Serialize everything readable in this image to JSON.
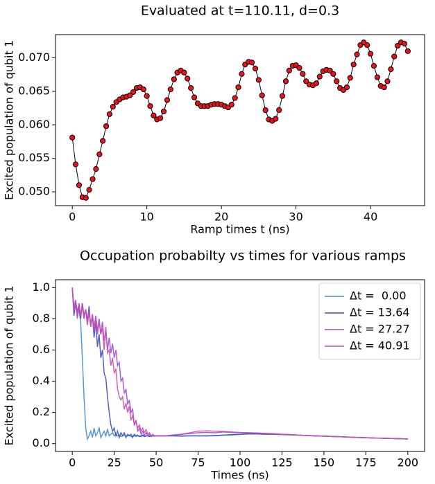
{
  "chart_data": [
    {
      "type": "line",
      "title": "Evaluated at t=110.11, d=0.3",
      "xlabel": "Ramp times t (ns)",
      "ylabel": "Excited population of qubit 1",
      "color": "#000000",
      "marker_color": "#e8141a",
      "x": [
        0,
        0.45,
        0.91,
        1.36,
        1.82,
        2.27,
        2.73,
        3.18,
        3.64,
        4.09,
        4.55,
        5.0,
        5.45,
        5.91,
        6.36,
        6.82,
        7.27,
        7.73,
        8.18,
        8.64,
        9.09,
        9.55,
        10.0,
        10.45,
        10.91,
        11.36,
        11.82,
        12.27,
        12.73,
        13.18,
        13.64,
        14.09,
        14.55,
        15.0,
        15.45,
        15.91,
        16.36,
        16.82,
        17.27,
        17.73,
        18.18,
        18.64,
        19.09,
        19.55,
        20.0,
        20.45,
        20.91,
        21.36,
        21.82,
        22.27,
        22.73,
        23.18,
        23.64,
        24.09,
        24.55,
        25.0,
        25.45,
        25.91,
        26.36,
        26.82,
        27.27,
        27.73,
        28.18,
        28.64,
        29.09,
        29.55,
        30.0,
        30.45,
        30.91,
        31.36,
        31.82,
        32.27,
        32.73,
        33.18,
        33.64,
        34.09,
        34.55,
        35.0,
        35.45,
        35.91,
        36.36,
        36.82,
        37.27,
        37.73,
        38.18,
        38.64,
        39.09,
        39.55,
        40.0,
        40.45,
        40.91,
        41.36,
        41.82,
        42.27,
        42.73,
        43.18,
        43.64,
        44.09,
        44.55,
        45.0
      ],
      "values": [
        0.0581,
        0.0541,
        0.051,
        0.0492,
        0.0491,
        0.0503,
        0.0519,
        0.0534,
        0.0556,
        0.0576,
        0.0598,
        0.0616,
        0.0627,
        0.0634,
        0.0638,
        0.0641,
        0.0642,
        0.0644,
        0.0649,
        0.0655,
        0.0656,
        0.0653,
        0.0643,
        0.0628,
        0.0614,
        0.0608,
        0.061,
        0.062,
        0.0637,
        0.0653,
        0.0668,
        0.0678,
        0.0681,
        0.0678,
        0.0669,
        0.0655,
        0.0641,
        0.0632,
        0.0628,
        0.0628,
        0.0628,
        0.063,
        0.0631,
        0.0631,
        0.063,
        0.0628,
        0.0626,
        0.063,
        0.064,
        0.0656,
        0.0676,
        0.069,
        0.0694,
        0.0693,
        0.0684,
        0.0667,
        0.0644,
        0.0622,
        0.0608,
        0.0606,
        0.0609,
        0.0622,
        0.0643,
        0.0665,
        0.0681,
        0.0688,
        0.0689,
        0.0685,
        0.0676,
        0.0665,
        0.066,
        0.0659,
        0.0662,
        0.0672,
        0.068,
        0.0682,
        0.0681,
        0.0676,
        0.0665,
        0.0655,
        0.0652,
        0.0656,
        0.067,
        0.069,
        0.0705,
        0.0719,
        0.0723,
        0.0719,
        0.0706,
        0.0688,
        0.0671,
        0.0658,
        0.0656,
        0.0665,
        0.0683,
        0.0702,
        0.0718,
        0.0723,
        0.0721,
        0.071
      ],
      "xlim": [
        -2.25,
        47.25
      ],
      "xticks": [
        0,
        10,
        20,
        30,
        40
      ],
      "ylim": [
        0.04794,
        0.07346
      ],
      "yticks": [
        {
          "value": 0.05,
          "label": "0.050"
        },
        {
          "value": 0.055,
          "label": "0.055"
        },
        {
          "value": 0.06,
          "label": "0.060"
        },
        {
          "value": 0.065,
          "label": "0.065"
        },
        {
          "value": 0.07,
          "label": "0.070"
        }
      ]
    },
    {
      "type": "line",
      "title": "Occupation probabilty vs times for various ramps",
      "xlabel": "Times (ns)",
      "ylabel": "Excited population of qubit 1",
      "legend": "upper right",
      "x": [
        0,
        1,
        2,
        3,
        4,
        5,
        6,
        7,
        8,
        9,
        10,
        11,
        12,
        13,
        14,
        15,
        16,
        17,
        18,
        19,
        20,
        21,
        22,
        23,
        24,
        25,
        26,
        27,
        28,
        29,
        30,
        31,
        32,
        33,
        34,
        35,
        36,
        37,
        38,
        39,
        40,
        41,
        42,
        43,
        44,
        45,
        46,
        47,
        48,
        49,
        50,
        55,
        60,
        65,
        70,
        75,
        80,
        85,
        90,
        95,
        100,
        105,
        110,
        115,
        120,
        125,
        130,
        135,
        140,
        145,
        150,
        155,
        160,
        165,
        170,
        175,
        180,
        185,
        190,
        195,
        200
      ],
      "series": [
        {
          "name": "Δt =  0.00",
          "color": "#3f8fce",
          "values": [
            1.0,
            0.85,
            0.9,
            0.82,
            0.86,
            0.78,
            0.55,
            0.3,
            0.1,
            0.03,
            0.05,
            0.08,
            0.04,
            0.1,
            0.05,
            0.07,
            0.1,
            0.04,
            0.06,
            0.08,
            0.05,
            0.09,
            0.05,
            0.06,
            0.07,
            0.05,
            0.06,
            0.05,
            0.055,
            0.045,
            0.05,
            0.055,
            0.045,
            0.05,
            0.055,
            0.045,
            0.05,
            0.05,
            0.045,
            0.05,
            0.05,
            0.045,
            0.05,
            0.05,
            0.048,
            0.05,
            0.05,
            0.048,
            0.05,
            0.05,
            0.05,
            0.05,
            0.05,
            0.05,
            0.05,
            0.05,
            0.05,
            0.05,
            0.055,
            0.055,
            0.06,
            0.065,
            0.065,
            0.065,
            0.063,
            0.06,
            0.058,
            0.055,
            0.052,
            0.05,
            0.048,
            0.046,
            0.044,
            0.042,
            0.04,
            0.038,
            0.036,
            0.035,
            0.033,
            0.032,
            0.03
          ]
        },
        {
          "name": "Δt = 13.64",
          "color": "#3d4ec0",
          "values": [
            1.0,
            0.82,
            0.9,
            0.85,
            0.88,
            0.8,
            0.9,
            0.82,
            0.86,
            0.78,
            0.88,
            0.75,
            0.82,
            0.68,
            0.78,
            0.62,
            0.7,
            0.55,
            0.6,
            0.45,
            0.42,
            0.3,
            0.2,
            0.12,
            0.08,
            0.1,
            0.05,
            0.08,
            0.04,
            0.07,
            0.05,
            0.07,
            0.04,
            0.06,
            0.05,
            0.06,
            0.04,
            0.06,
            0.05,
            0.055,
            0.045,
            0.05,
            0.055,
            0.045,
            0.05,
            0.05,
            0.045,
            0.05,
            0.05,
            0.048,
            0.05,
            0.05,
            0.05,
            0.048,
            0.05,
            0.05,
            0.05,
            0.052,
            0.055,
            0.058,
            0.06,
            0.062,
            0.062,
            0.06,
            0.06,
            0.058,
            0.056,
            0.054,
            0.052,
            0.05,
            0.048,
            0.046,
            0.044,
            0.042,
            0.04,
            0.038,
            0.036,
            0.035,
            0.033,
            0.032,
            0.03
          ]
        },
        {
          "name": "Δt = 27.27",
          "color": "#9a4fd4",
          "values": [
            1.0,
            0.88,
            0.92,
            0.84,
            0.9,
            0.82,
            0.88,
            0.8,
            0.86,
            0.78,
            0.85,
            0.76,
            0.83,
            0.74,
            0.82,
            0.72,
            0.8,
            0.7,
            0.78,
            0.66,
            0.72,
            0.6,
            0.68,
            0.58,
            0.64,
            0.55,
            0.6,
            0.5,
            0.52,
            0.4,
            0.42,
            0.32,
            0.35,
            0.25,
            0.28,
            0.2,
            0.22,
            0.12,
            0.15,
            0.08,
            0.1,
            0.06,
            0.08,
            0.05,
            0.07,
            0.05,
            0.06,
            0.045,
            0.05,
            0.05,
            0.05,
            0.05,
            0.055,
            0.06,
            0.065,
            0.07,
            0.072,
            0.07,
            0.075,
            0.072,
            0.07,
            0.07,
            0.068,
            0.066,
            0.064,
            0.06,
            0.058,
            0.055,
            0.052,
            0.05,
            0.048,
            0.046,
            0.044,
            0.042,
            0.04,
            0.038,
            0.036,
            0.035,
            0.033,
            0.032,
            0.03
          ]
        },
        {
          "name": "Δt = 40.91",
          "color": "#cc4cae",
          "values": [
            1.0,
            0.85,
            0.9,
            0.8,
            0.88,
            0.82,
            0.9,
            0.8,
            0.86,
            0.76,
            0.84,
            0.75,
            0.82,
            0.72,
            0.8,
            0.7,
            0.78,
            0.7,
            0.74,
            0.6,
            0.75,
            0.58,
            0.6,
            0.5,
            0.55,
            0.45,
            0.48,
            0.35,
            0.3,
            0.28,
            0.3,
            0.22,
            0.26,
            0.2,
            0.24,
            0.15,
            0.18,
            0.12,
            0.14,
            0.1,
            0.12,
            0.08,
            0.1,
            0.07,
            0.09,
            0.06,
            0.07,
            0.05,
            0.06,
            0.05,
            0.05,
            0.05,
            0.055,
            0.06,
            0.07,
            0.08,
            0.082,
            0.08,
            0.078,
            0.075,
            0.072,
            0.07,
            0.068,
            0.065,
            0.062,
            0.06,
            0.058,
            0.055,
            0.052,
            0.05,
            0.048,
            0.046,
            0.044,
            0.042,
            0.04,
            0.038,
            0.036,
            0.035,
            0.033,
            0.032,
            0.03
          ]
        }
      ],
      "xlim": [
        -10,
        210
      ],
      "xticks": [
        0,
        25,
        50,
        75,
        100,
        125,
        150,
        175,
        200
      ],
      "ylim": [
        -0.05,
        1.05
      ],
      "yticks": [
        {
          "value": 0,
          "label": "0.0"
        },
        {
          "value": 0.2,
          "label": "0.2"
        },
        {
          "value": 0.4,
          "label": "0.4"
        },
        {
          "value": 0.6,
          "label": "0.6"
        },
        {
          "value": 0.8,
          "label": "0.8"
        },
        {
          "value": 1.0,
          "label": "1.0"
        }
      ]
    }
  ]
}
